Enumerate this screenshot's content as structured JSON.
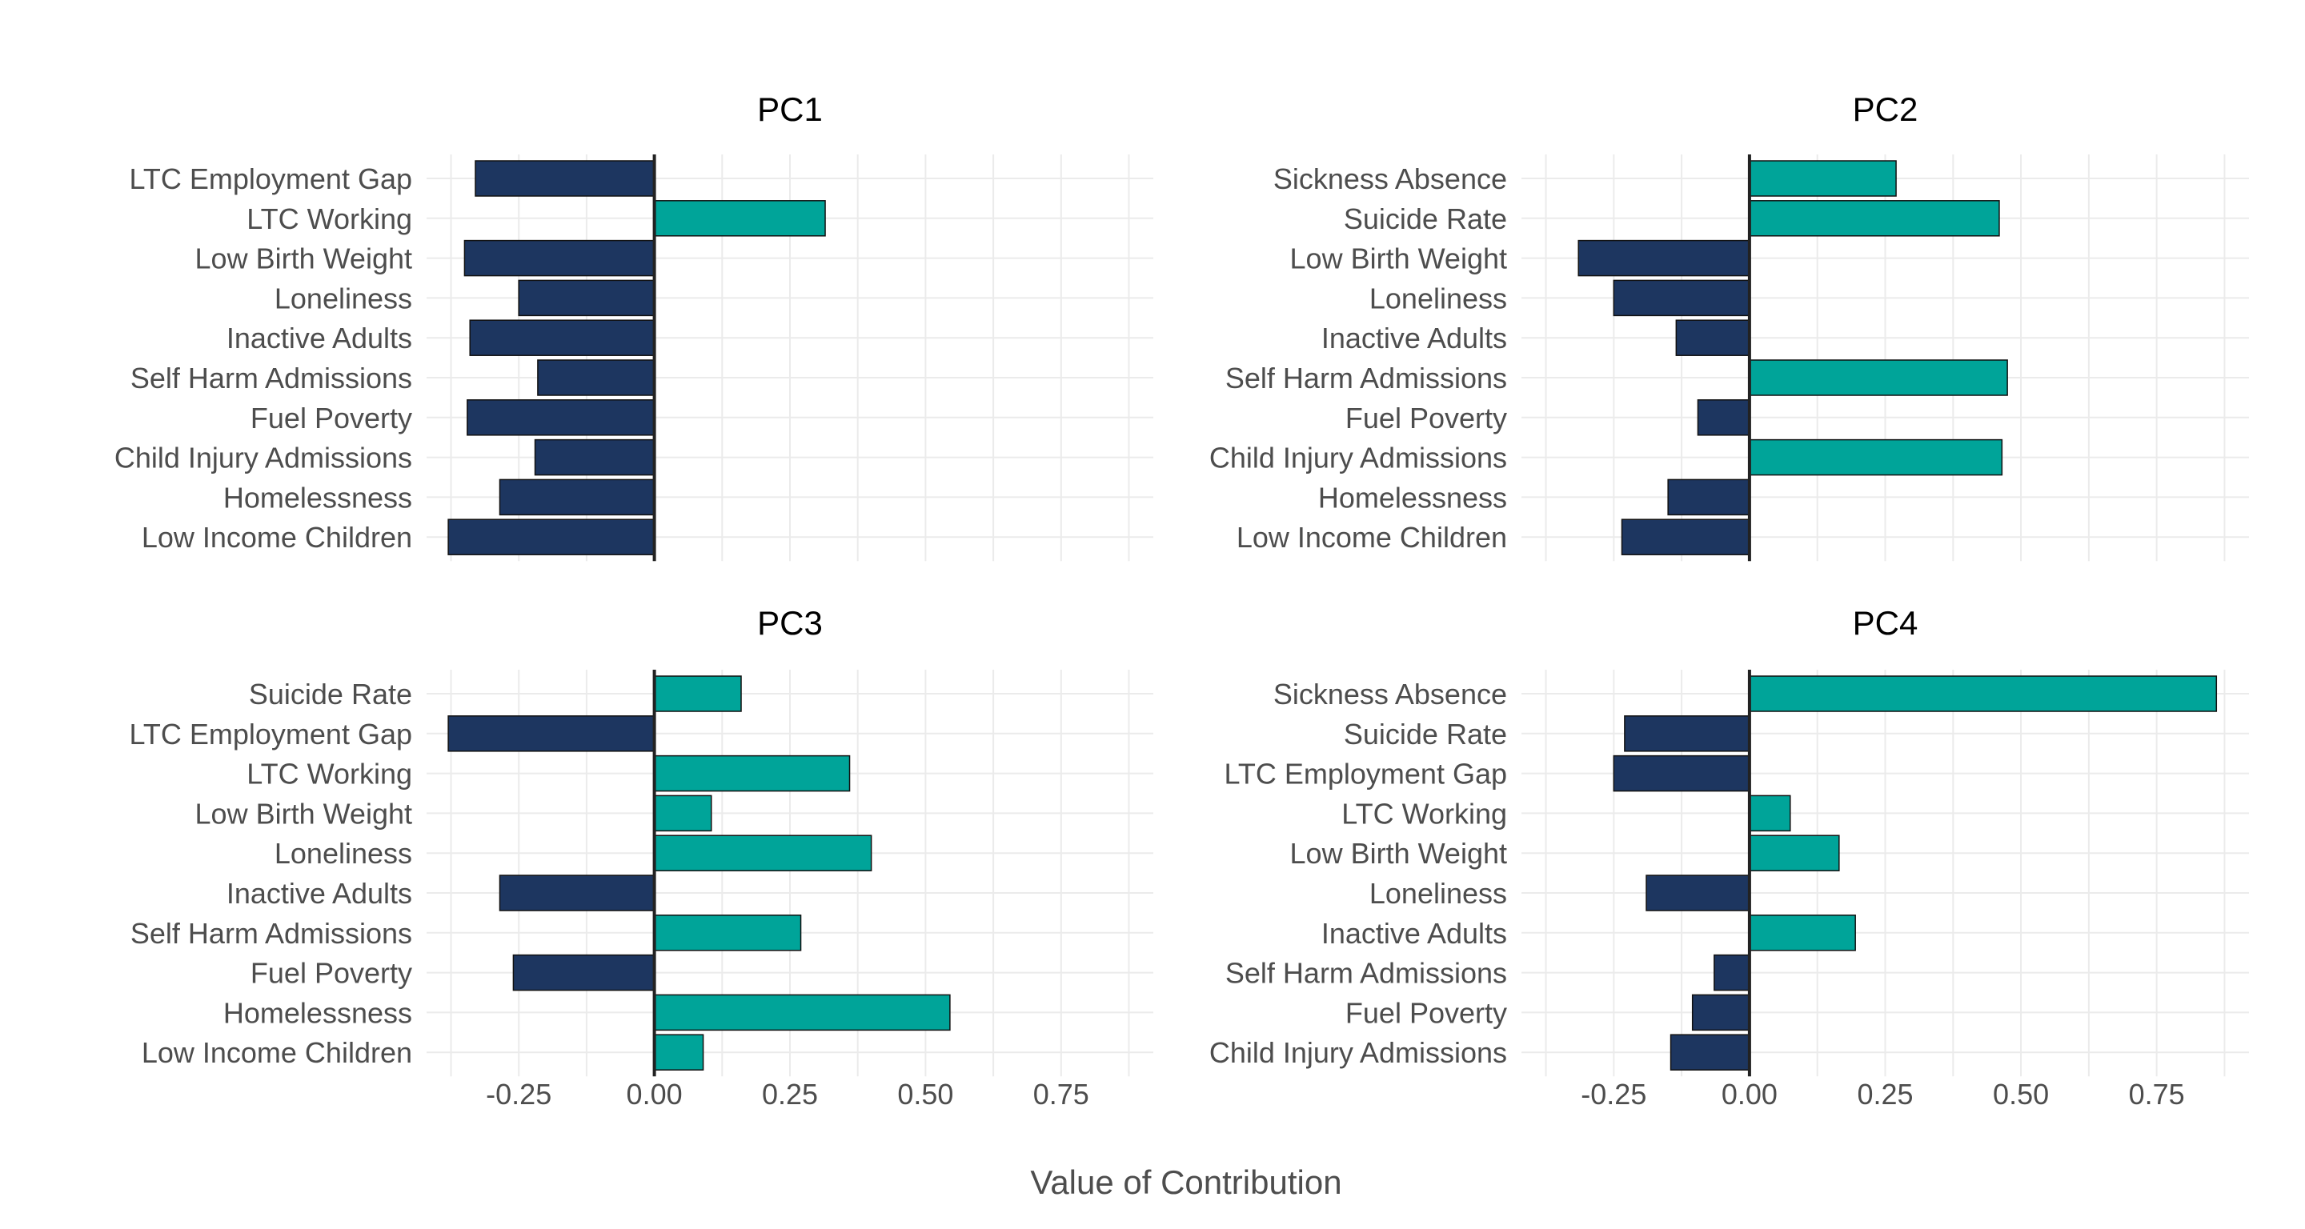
{
  "chart_data": {
    "type": "bar",
    "orientation": "horizontal",
    "xlabel": "Value of Contribution",
    "xlim": [
      -0.42,
      0.92
    ],
    "xticks": [
      -0.25,
      0.0,
      0.25,
      0.5,
      0.75
    ],
    "xtick_labels": [
      "-0.25",
      "0.00",
      "0.25",
      "0.50",
      "0.75"
    ],
    "grid": true,
    "colors": {
      "positive": "#00A499",
      "negative": "#1D3660"
    },
    "facets": [
      {
        "title": "PC1",
        "categories": [
          "LTC Employment Gap",
          "LTC Working",
          "Low Birth Weight",
          "Loneliness",
          "Inactive Adults",
          "Self Harm Admissions",
          "Fuel Poverty",
          "Child Injury Admissions",
          "Homelessness",
          "Low Income Children"
        ],
        "values": [
          -0.33,
          0.315,
          -0.35,
          -0.25,
          -0.34,
          -0.215,
          -0.345,
          -0.22,
          -0.285,
          -0.38
        ]
      },
      {
        "title": "PC2",
        "categories": [
          "Sickness Absence",
          "Suicide Rate",
          "Low Birth Weight",
          "Loneliness",
          "Inactive Adults",
          "Self Harm Admissions",
          "Fuel Poverty",
          "Child Injury Admissions",
          "Homelessness",
          "Low Income Children"
        ],
        "values": [
          0.27,
          0.46,
          -0.315,
          -0.25,
          -0.135,
          0.475,
          -0.095,
          0.465,
          -0.15,
          -0.235
        ]
      },
      {
        "title": "PC3",
        "categories": [
          "Suicide Rate",
          "LTC Employment Gap",
          "LTC Working",
          "Low Birth Weight",
          "Loneliness",
          "Inactive Adults",
          "Self Harm Admissions",
          "Fuel Poverty",
          "Homelessness",
          "Low Income Children"
        ],
        "values": [
          0.16,
          -0.38,
          0.36,
          0.105,
          0.4,
          -0.285,
          0.27,
          -0.26,
          0.545,
          0.09
        ]
      },
      {
        "title": "PC4",
        "categories": [
          "Sickness Absence",
          "Suicide Rate",
          "LTC Employment Gap",
          "LTC Working",
          "Low Birth Weight",
          "Loneliness",
          "Inactive Adults",
          "Self Harm Admissions",
          "Fuel Poverty",
          "Child Injury Admissions"
        ],
        "values": [
          0.86,
          -0.23,
          -0.25,
          0.075,
          0.165,
          -0.19,
          0.195,
          -0.065,
          -0.105,
          -0.145
        ]
      }
    ]
  }
}
